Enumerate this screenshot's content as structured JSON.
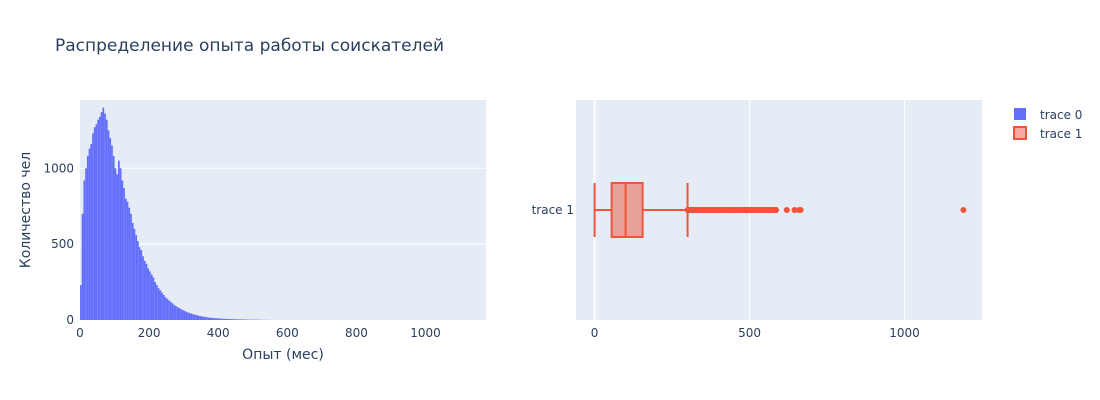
{
  "chart_data": [
    {
      "type": "bar",
      "subtype": "histogram",
      "title": "Распределение опыта работы соискателей",
      "xlabel": "Опыт (мес)",
      "ylabel": "Количество чел",
      "xlim": [
        0,
        1175
      ],
      "ylim": [
        0,
        1450
      ],
      "xticks": [
        0,
        200,
        400,
        600,
        800,
        1000
      ],
      "yticks": [
        0,
        500,
        1000
      ],
      "grid": true,
      "bin_width": 5,
      "series": [
        {
          "name": "trace 0",
          "color": "#636efa",
          "bins_start": 0,
          "values": [
            230,
            700,
            920,
            1000,
            1080,
            1130,
            1160,
            1230,
            1270,
            1290,
            1320,
            1340,
            1370,
            1400,
            1360,
            1320,
            1250,
            1200,
            1150,
            1080,
            1000,
            960,
            1050,
            1000,
            920,
            870,
            800,
            780,
            740,
            700,
            640,
            600,
            560,
            520,
            480,
            460,
            420,
            390,
            370,
            340,
            320,
            300,
            280,
            250,
            230,
            210,
            195,
            180,
            165,
            150,
            140,
            130,
            120,
            110,
            100,
            92,
            85,
            78,
            72,
            66,
            60,
            55,
            50,
            46,
            42,
            38,
            35,
            32,
            29,
            26,
            24,
            22,
            20,
            18,
            16,
            15,
            14,
            13,
            12,
            11,
            10,
            9,
            9,
            8,
            7,
            7,
            6,
            6,
            5,
            5,
            5,
            4,
            4,
            4,
            3,
            3,
            3,
            3,
            2,
            2,
            2,
            2,
            2,
            2,
            1,
            1,
            1,
            1,
            1,
            1
          ]
        }
      ]
    },
    {
      "type": "box",
      "orientation": "horizontal",
      "xlim": [
        -60,
        1250
      ],
      "xticks": [
        0,
        500,
        1000
      ],
      "categories": [
        "trace 1"
      ],
      "grid": true,
      "series": [
        {
          "name": "trace 1",
          "color": "#ef553b",
          "fill": "#ef553b",
          "min": 0,
          "q1": 55,
          "median": 100,
          "q3": 155,
          "upper_fence": 300,
          "outliers": [
            305,
            315,
            325,
            335,
            345,
            360,
            375,
            390,
            405,
            420,
            440,
            460,
            480,
            500,
            520,
            540,
            560,
            575,
            585,
            620,
            645,
            660,
            665,
            1190
          ]
        }
      ]
    }
  ],
  "legend": {
    "placement": "top-right",
    "items": [
      {
        "label": "trace 0",
        "color": "#636efa",
        "kind": "bar"
      },
      {
        "label": "trace 1",
        "color": "#ef553b",
        "kind": "box"
      }
    ]
  }
}
